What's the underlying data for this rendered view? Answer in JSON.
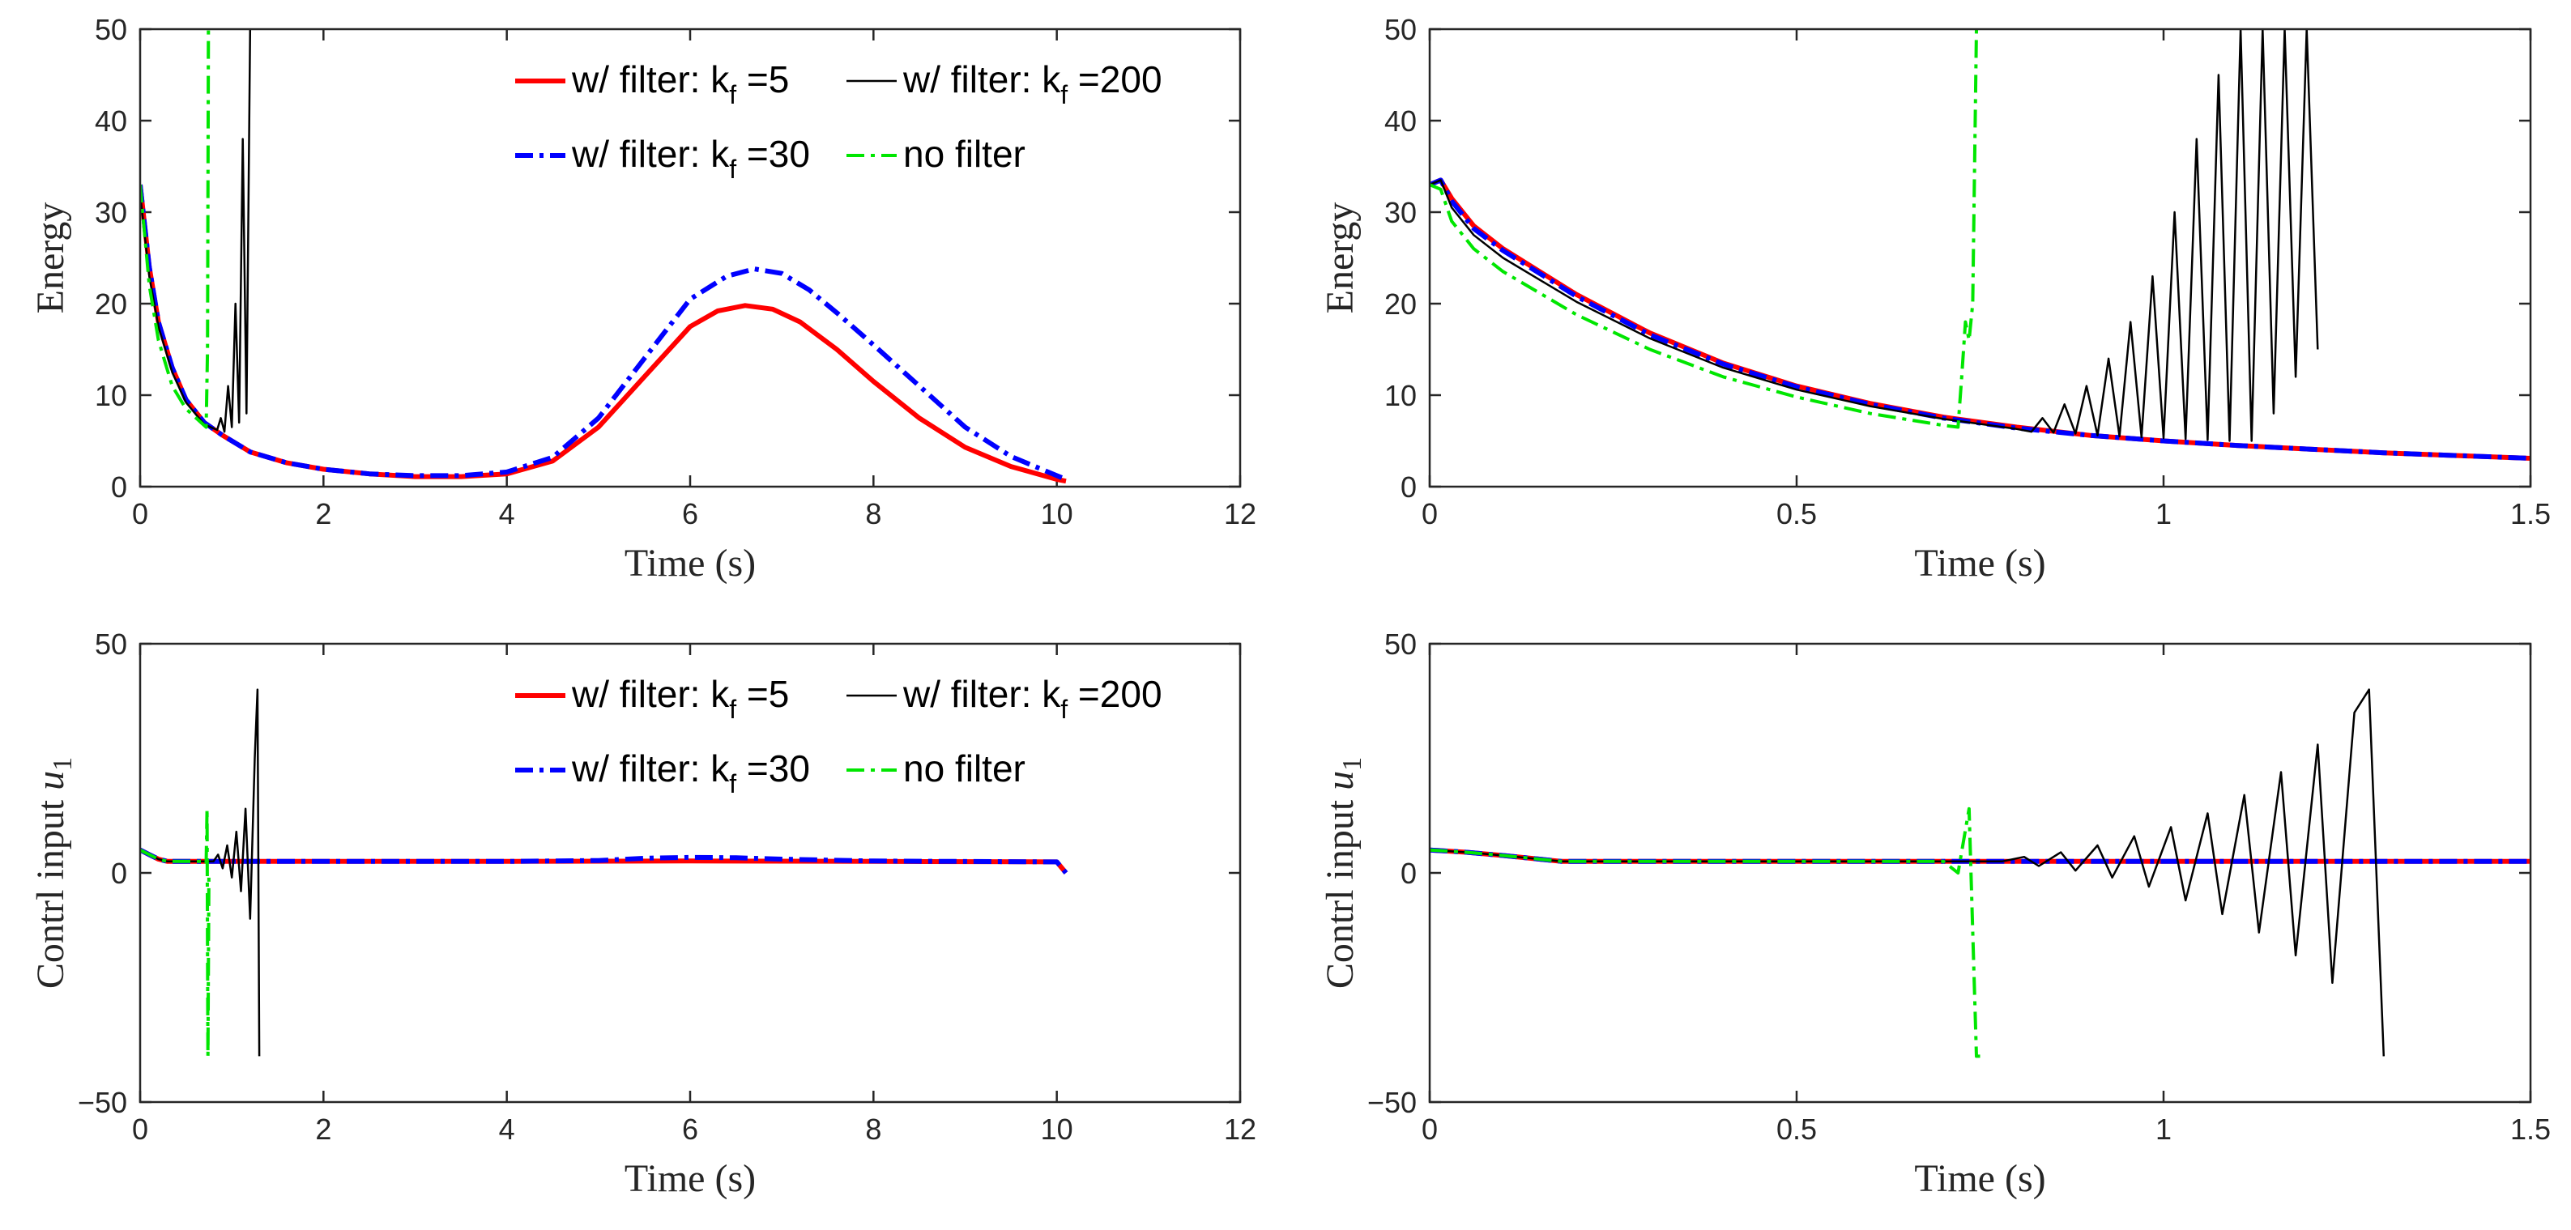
{
  "chart_data": [
    {
      "id": "energy-full",
      "type": "line",
      "xlabel": "Time (s)",
      "ylabel": "Energy",
      "xlim": [
        0,
        12
      ],
      "ylim": [
        0,
        50
      ],
      "xticks": [
        "0",
        "2",
        "4",
        "6",
        "8",
        "10",
        "12"
      ],
      "yticks": [
        "0",
        "10",
        "20",
        "30",
        "40",
        "50"
      ],
      "legend": true,
      "series": [
        {
          "name": "w/ filter: k_f =5",
          "color": "#ff0000",
          "x": [
            0,
            0.1,
            0.2,
            0.35,
            0.5,
            0.7,
            0.9,
            1.2,
            1.6,
            2.0,
            2.5,
            3.0,
            3.5,
            4.0,
            4.5,
            5.0,
            5.5,
            6.0,
            6.3,
            6.6,
            6.9,
            7.2,
            7.6,
            8.0,
            8.5,
            9.0,
            9.5,
            10.0,
            10.1
          ],
          "y": [
            33,
            24,
            18,
            13,
            9.5,
            7,
            5.6,
            3.8,
            2.6,
            1.9,
            1.4,
            1.1,
            1.1,
            1.4,
            2.8,
            6.5,
            12,
            17.5,
            19.2,
            19.8,
            19.4,
            18,
            15,
            11.5,
            7.5,
            4.3,
            2.2,
            0.8,
            0.6
          ]
        },
        {
          "name": "w/ filter: k_f =30",
          "color": "#0000ff",
          "x": [
            0,
            0.1,
            0.2,
            0.35,
            0.5,
            0.7,
            0.9,
            1.2,
            1.6,
            2.0,
            2.5,
            3.0,
            3.5,
            4.0,
            4.5,
            5.0,
            5.5,
            6.0,
            6.4,
            6.7,
            7.0,
            7.3,
            7.6,
            8.0,
            8.5,
            9.0,
            9.5,
            10.0,
            10.1
          ],
          "y": [
            33,
            24,
            18,
            13,
            9.5,
            7,
            5.6,
            3.8,
            2.6,
            1.9,
            1.4,
            1.2,
            1.2,
            1.6,
            3.2,
            7.5,
            14,
            20.5,
            23,
            23.8,
            23.3,
            21.5,
            19,
            15.5,
            11,
            6.5,
            3.3,
            1.2,
            0.8
          ]
        },
        {
          "name": "w/ filter: k_f =200",
          "color": "#000000",
          "x": [
            0,
            0.1,
            0.2,
            0.35,
            0.5,
            0.7,
            0.84,
            0.88,
            0.92,
            0.96,
            1.0,
            1.04,
            1.08,
            1.12,
            1.16,
            1.2
          ],
          "y": [
            32,
            23,
            17.5,
            12.5,
            9.2,
            6.8,
            6.2,
            7.5,
            6,
            11,
            6.5,
            20,
            7,
            38,
            8,
            50
          ]
        },
        {
          "name": "no filter",
          "color": "#00e600",
          "x": [
            0,
            0.1,
            0.2,
            0.35,
            0.5,
            0.72,
            0.735,
            0.745,
            0.75
          ],
          "y": [
            33,
            22,
            16,
            11,
            8.5,
            6.5,
            15,
            50,
            50
          ]
        }
      ]
    },
    {
      "id": "energy-zoom",
      "type": "line",
      "xlabel": "Time (s)",
      "ylabel": "Energy",
      "xlim": [
        0,
        1.5
      ],
      "ylim": [
        0,
        50
      ],
      "xticks": [
        "0",
        "0.5",
        "1",
        "1.5"
      ],
      "yticks": [
        "0",
        "10",
        "20",
        "30",
        "40",
        "50"
      ],
      "legend": false,
      "series": [
        {
          "name": "w/ filter: k_f =5",
          "color": "#ff0000",
          "x": [
            0,
            0.015,
            0.03,
            0.06,
            0.1,
            0.2,
            0.3,
            0.4,
            0.5,
            0.6,
            0.7,
            0.8,
            0.9,
            1.0,
            1.1,
            1.2,
            1.3,
            1.4,
            1.5
          ],
          "y": [
            33,
            33.5,
            31.5,
            28.5,
            26,
            21,
            16.8,
            13.5,
            11,
            9.1,
            7.6,
            6.5,
            5.6,
            5,
            4.5,
            4.1,
            3.7,
            3.4,
            3.1
          ]
        },
        {
          "name": "w/ filter: k_f =30",
          "color": "#0000ff",
          "x": [
            0,
            0.015,
            0.03,
            0.06,
            0.1,
            0.2,
            0.3,
            0.4,
            0.5,
            0.6,
            0.7,
            0.8,
            0.9,
            1.0,
            1.1,
            1.2,
            1.3,
            1.4,
            1.5
          ],
          "y": [
            33,
            33.5,
            31.2,
            28.2,
            25.8,
            20.8,
            16.6,
            13.4,
            10.9,
            9,
            7.5,
            6.4,
            5.6,
            5,
            4.5,
            4.1,
            3.7,
            3.4,
            3.1
          ]
        },
        {
          "name": "w/ filter: k_f =200",
          "color": "#000000",
          "x": [
            0,
            0.015,
            0.03,
            0.06,
            0.1,
            0.2,
            0.3,
            0.4,
            0.5,
            0.6,
            0.7,
            0.8,
            0.82,
            0.835,
            0.85,
            0.865,
            0.88,
            0.895,
            0.91,
            0.925,
            0.94,
            0.955,
            0.97,
            0.985,
            1.0,
            1.015,
            1.03,
            1.045,
            1.06,
            1.075,
            1.09,
            1.105,
            1.12,
            1.135,
            1.15,
            1.165,
            1.18,
            1.195,
            1.21
          ],
          "y": [
            33,
            33.5,
            30.5,
            27.5,
            25,
            20.2,
            16.2,
            13,
            10.6,
            8.8,
            7.4,
            6.3,
            6,
            7.5,
            5.9,
            9,
            5.8,
            11,
            5.6,
            14,
            5.5,
            18,
            5.4,
            23,
            5.3,
            30,
            5.2,
            38,
            5.1,
            45,
            5,
            50,
            5,
            50,
            8,
            50,
            12,
            50,
            15
          ]
        },
        {
          "name": "no filter",
          "color": "#00e600",
          "x": [
            0,
            0.015,
            0.03,
            0.06,
            0.1,
            0.2,
            0.3,
            0.4,
            0.5,
            0.6,
            0.7,
            0.72,
            0.725,
            0.73,
            0.735,
            0.74,
            0.745,
            0.75
          ],
          "y": [
            33,
            32.5,
            29,
            26,
            23.5,
            18.8,
            15,
            12,
            9.8,
            8,
            6.7,
            6.5,
            12,
            18,
            16,
            20,
            50,
            50
          ]
        }
      ]
    },
    {
      "id": "control-full",
      "type": "line",
      "xlabel": "Time (s)",
      "ylabel": "Contrl input u1",
      "xlim": [
        0,
        12
      ],
      "ylim": [
        -50,
        50
      ],
      "xticks": [
        "0",
        "2",
        "4",
        "6",
        "8",
        "10",
        "12"
      ],
      "yticks": [
        "-50",
        "0",
        "50"
      ],
      "legend": true,
      "series": [
        {
          "name": "w/ filter: k_f =5",
          "color": "#ff0000",
          "x": [
            0,
            0.1,
            0.2,
            0.3,
            1,
            2,
            4,
            6,
            8,
            10,
            10.05,
            10.1
          ],
          "y": [
            5,
            4,
            3,
            2.5,
            2.5,
            2.5,
            2.5,
            2.6,
            2.5,
            2.4,
            1.2,
            0
          ]
        },
        {
          "name": "w/ filter: k_f =30",
          "color": "#0000ff",
          "x": [
            0,
            0.1,
            0.2,
            0.3,
            1,
            2,
            4,
            5,
            5.5,
            6,
            6.5,
            7,
            7.5,
            8,
            10,
            10.05,
            10.1
          ],
          "y": [
            5,
            4,
            3,
            2.5,
            2.5,
            2.5,
            2.5,
            2.7,
            3.2,
            3.4,
            3.3,
            3.0,
            2.8,
            2.6,
            2.4,
            1.2,
            0
          ]
        },
        {
          "name": "w/ filter: k_f =200",
          "color": "#000000",
          "x": [
            0,
            0.1,
            0.2,
            0.3,
            0.8,
            0.85,
            0.9,
            0.95,
            1.0,
            1.05,
            1.1,
            1.15,
            1.2,
            1.25,
            1.28,
            1.3
          ],
          "y": [
            5,
            4,
            3,
            2.5,
            2.5,
            4,
            1,
            6,
            -1,
            9,
            -4,
            14,
            -10,
            25,
            40,
            -40
          ]
        },
        {
          "name": "no filter",
          "color": "#00e600",
          "x": [
            0,
            0.1,
            0.2,
            0.3,
            0.7,
            0.72,
            0.73,
            0.74,
            0.75
          ],
          "y": [
            5,
            4,
            3,
            2.5,
            2.5,
            2,
            14,
            -40,
            0
          ]
        }
      ]
    },
    {
      "id": "control-zoom",
      "type": "line",
      "xlabel": "Time (s)",
      "ylabel": "Contrl input u1",
      "xlim": [
        0,
        1.5
      ],
      "ylim": [
        -50,
        50
      ],
      "xticks": [
        "0",
        "0.5",
        "1",
        "1.5"
      ],
      "yticks": [
        "-50",
        "0",
        "50"
      ],
      "legend": false,
      "series": [
        {
          "name": "w/ filter: k_f =5",
          "color": "#ff0000",
          "x": [
            0,
            0.05,
            0.1,
            0.18,
            0.3,
            0.5,
            0.7,
            0.9,
            1.1,
            1.3,
            1.5
          ],
          "y": [
            5,
            4.5,
            3.8,
            2.5,
            2.5,
            2.5,
            2.5,
            2.5,
            2.5,
            2.5,
            2.5
          ]
        },
        {
          "name": "w/ filter: k_f =30",
          "color": "#0000ff",
          "x": [
            0,
            0.05,
            0.1,
            0.18,
            0.3,
            0.5,
            0.7,
            0.9,
            1.1,
            1.3,
            1.5
          ],
          "y": [
            5,
            4.5,
            3.8,
            2.5,
            2.5,
            2.5,
            2.5,
            2.5,
            2.5,
            2.5,
            2.5
          ]
        },
        {
          "name": "w/ filter: k_f =200",
          "color": "#000000",
          "x": [
            0,
            0.05,
            0.1,
            0.18,
            0.3,
            0.5,
            0.7,
            0.78,
            0.81,
            0.83,
            0.86,
            0.88,
            0.91,
            0.93,
            0.96,
            0.98,
            1.01,
            1.03,
            1.06,
            1.08,
            1.11,
            1.13,
            1.16,
            1.18,
            1.21,
            1.23,
            1.26,
            1.28,
            1.3
          ],
          "y": [
            5,
            4.5,
            3.8,
            2.5,
            2.5,
            2.5,
            2.5,
            2.5,
            3.5,
            1.5,
            4.5,
            0.5,
            6,
            -1,
            8,
            -3,
            10,
            -6,
            13,
            -9,
            17,
            -13,
            22,
            -18,
            28,
            -24,
            35,
            40,
            -40
          ]
        },
        {
          "name": "no filter",
          "color": "#00e600",
          "x": [
            0,
            0.05,
            0.1,
            0.18,
            0.3,
            0.5,
            0.7,
            0.72,
            0.735,
            0.745,
            0.75
          ],
          "y": [
            5,
            4.5,
            3.8,
            2.5,
            2.5,
            2.5,
            2.5,
            0,
            14,
            -40,
            -40
          ]
        }
      ]
    }
  ]
}
